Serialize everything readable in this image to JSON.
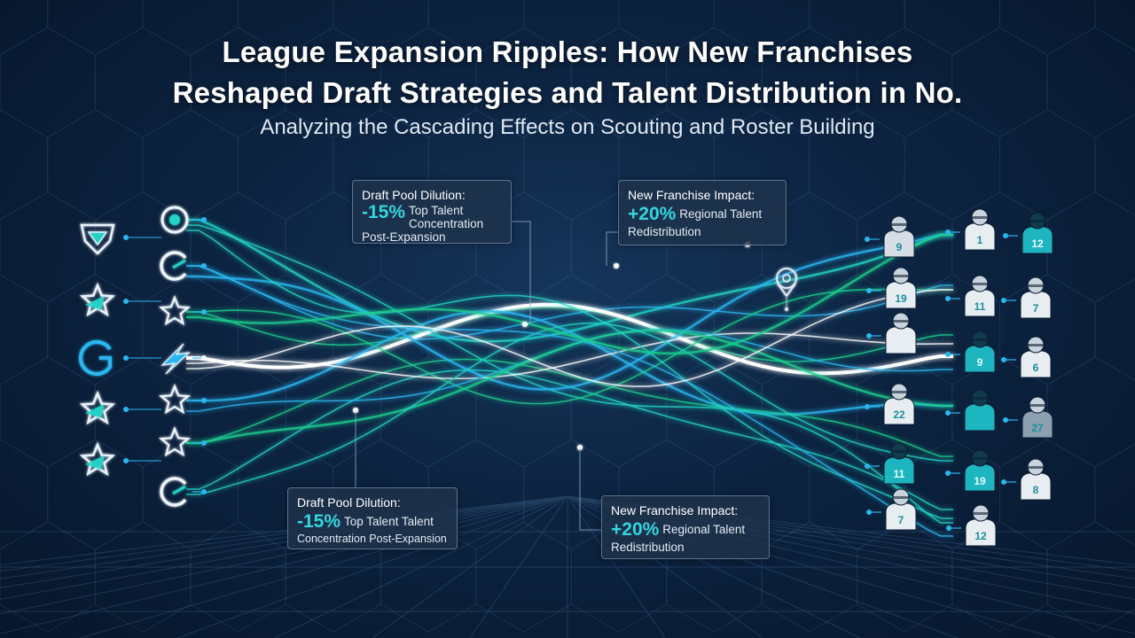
{
  "header": {
    "title_line1": "League Expansion Ripples: How New Franchises",
    "title_line2": "Reshaped Draft Strategies and Talent Distribution in No.",
    "subtitle": "Analyzing the Cascading Effects on Scouting and Roster Building"
  },
  "callouts": {
    "top_left": {
      "head": "Draft Pool Dilution:",
      "pct": "-15%",
      "body_1": "Top Talent",
      "body_2": "Concentration",
      "body_3": "Post-Expansion"
    },
    "top_right": {
      "head": "New Franchise Impact:",
      "pct": "+20%",
      "body_1": "Regional Talent",
      "body_2": "Redistribution"
    },
    "bottom_left": {
      "head": "Draft Pool Dilution:",
      "pct": "-15%",
      "body_1": "Top Talent Talent",
      "body_2": "Concentration Post-Expansion"
    },
    "bottom_right": {
      "head": "New Franchise Impact:",
      "pct": "+20%",
      "body_1": "Regional Talent",
      "body_2": "Redistribution"
    }
  },
  "jerseys": [
    "9",
    "1",
    "12",
    "19",
    "11",
    "7",
    "",
    "9",
    "6",
    "22",
    "",
    "27",
    "11",
    "19",
    "8",
    "7",
    "12"
  ],
  "logos_left": [
    "shield-logo-icon",
    "star-logo-icon",
    "g-logo-icon",
    "star-logo-icon",
    "star-logo-icon"
  ],
  "logos_mid": [
    "ring-logo-icon",
    "swoosh-g-logo-icon",
    "star-logo-icon",
    "bolt-logo-icon",
    "star-logo-icon",
    "star-logo-icon",
    "c-logo-icon"
  ],
  "colors": {
    "teal": "#23d3c6",
    "cyan": "#2ab7f0",
    "green": "#1fcf8f",
    "white": "#ffffff",
    "bg": "#0c2340"
  }
}
